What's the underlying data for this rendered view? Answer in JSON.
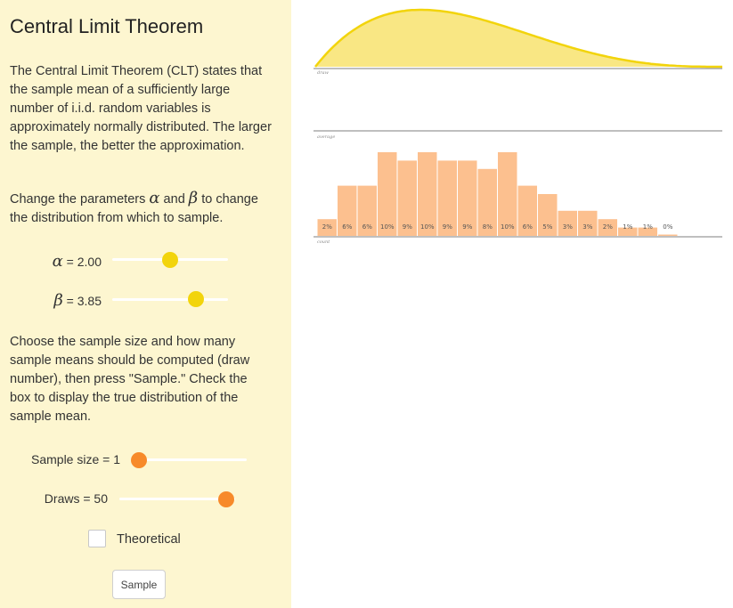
{
  "sidebar": {
    "title": "Central Limit Theorem",
    "intro": "The Central Limit Theorem (CLT) states that the sample mean of a sufficiently large number of i.i.d. random variables is approximately normally distributed. The larger the sample, the better the approximation.",
    "params_text": {
      "before": "Change the parameters ",
      "alpha": "α",
      "middle": " and ",
      "beta": "β",
      "after": " to change the distribution from which to sample."
    },
    "alpha": {
      "symbol": "α",
      "label": " = 2.00",
      "value": 2.0,
      "fraction": 0.5
    },
    "beta": {
      "symbol": "β",
      "label": " = 3.85",
      "value": 3.85,
      "fraction": 0.72
    },
    "sample_text": "Choose the sample size and how many sample means should be computed (draw number), then press \"Sample.\" Check the box to display the true distribution of the sample mean.",
    "sample_size": {
      "label": "Sample size = 1",
      "value": 1,
      "fraction": 0.0
    },
    "draws": {
      "label": "Draws = 50",
      "value": 50,
      "fraction": 1.0
    },
    "theoretical_label": "Theoretical",
    "theoretical_checked": false,
    "sample_button": "Sample"
  },
  "chart_data": [
    {
      "type": "area",
      "label": "draw",
      "distribution": "Beta",
      "alpha": 2.0,
      "beta": 3.85,
      "fill_color": "#f9e784",
      "stroke_color": "#f2d40c"
    },
    {
      "type": "bar",
      "top_label": "average",
      "bottom_label": "count",
      "bar_color": "#fcc08f",
      "values": [
        2,
        6,
        6,
        10,
        9,
        10,
        9,
        9,
        8,
        10,
        6,
        5,
        3,
        3,
        2,
        1,
        1,
        0
      ],
      "labels": [
        "2%",
        "6%",
        "6%",
        "10%",
        "9%",
        "10%",
        "9%",
        "9%",
        "8%",
        "10%",
        "6%",
        "5%",
        "3%",
        "3%",
        "2%",
        "1%",
        "1%",
        "0%"
      ]
    }
  ]
}
